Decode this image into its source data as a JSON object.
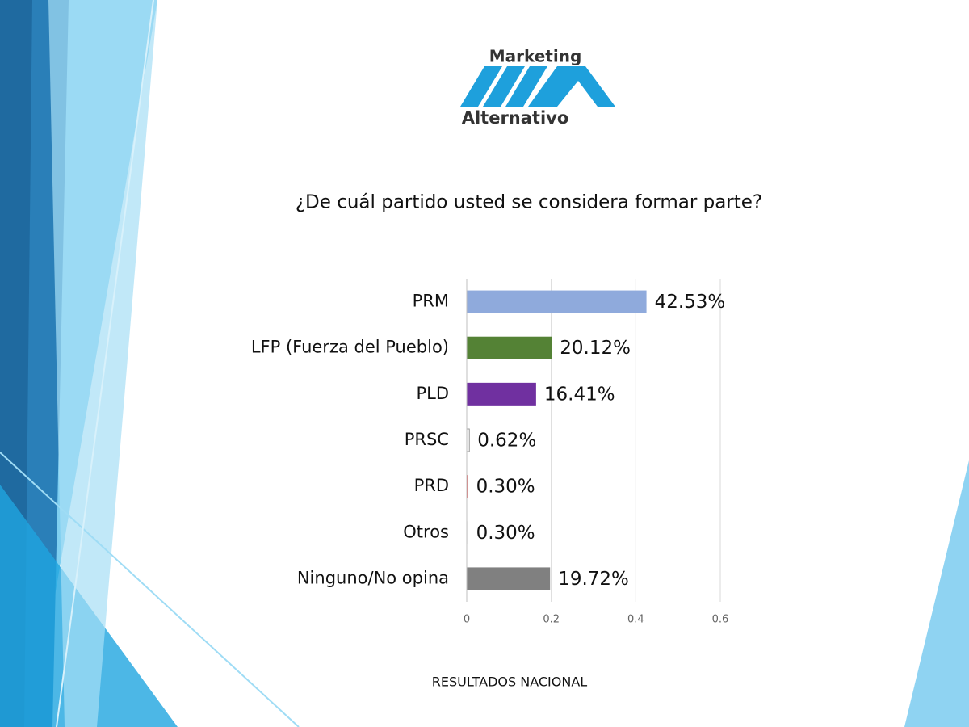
{
  "logo": {
    "top": "Marketing",
    "bottom": "Alternativo"
  },
  "chart_data": {
    "type": "hbar",
    "title": "¿De cuál partido usted se considera formar parte?",
    "categories": [
      "PRM",
      "LFP (Fuerza del Pueblo)",
      "PLD",
      "PRSC",
      "PRD",
      "Otros",
      "Ninguno/No opina"
    ],
    "values": [
      0.4253,
      0.2012,
      0.1641,
      0.0062,
      0.003,
      0.003,
      0.1972
    ],
    "value_labels": [
      "42.53%",
      "20.12%",
      "16.41%",
      "0.62%",
      "0.30%",
      "0.30%",
      "19.72%"
    ],
    "colors": [
      "#8faadc",
      "#548235",
      "#7030a0",
      "#ffffff",
      "#e06666",
      "#f2f2f2",
      "#808080"
    ],
    "xlim": [
      0,
      0.6
    ],
    "xticks": [
      0,
      0.2,
      0.4,
      0.6
    ],
    "grid": true
  },
  "footer": "RESULTADOS NACIONAL"
}
